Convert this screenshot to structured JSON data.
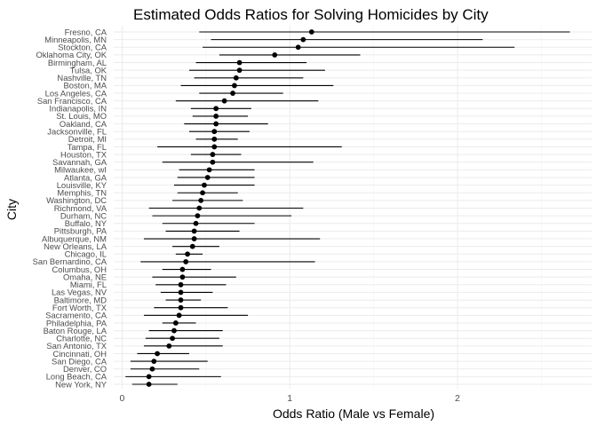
{
  "chart_data": {
    "type": "scatter",
    "title": "Estimated Odds Ratios for Solving Homicides by City",
    "xlabel": "Odds Ratio (Male vs Female)",
    "ylabel": "City",
    "xlim": [
      -0.05,
      2.8
    ],
    "xticks": [
      0,
      1,
      2
    ],
    "grid": true,
    "cities": [
      {
        "city": "Fresno, CA",
        "or": 1.13,
        "lo": 0.46,
        "hi": 2.67
      },
      {
        "city": "Minneapolis, MN",
        "or": 1.08,
        "lo": 0.53,
        "hi": 2.15
      },
      {
        "city": "Stockton, CA",
        "or": 1.05,
        "lo": 0.48,
        "hi": 2.34
      },
      {
        "city": "Oklahoma City, OK",
        "or": 0.91,
        "lo": 0.58,
        "hi": 1.42
      },
      {
        "city": "Birmingham, AL",
        "or": 0.7,
        "lo": 0.44,
        "hi": 1.1
      },
      {
        "city": "Tulsa, OK",
        "or": 0.7,
        "lo": 0.4,
        "hi": 1.21
      },
      {
        "city": "Nashville, TN",
        "or": 0.68,
        "lo": 0.43,
        "hi": 1.08
      },
      {
        "city": "Boston, MA",
        "or": 0.67,
        "lo": 0.35,
        "hi": 1.26
      },
      {
        "city": "Los Angeles, CA",
        "or": 0.66,
        "lo": 0.46,
        "hi": 0.96
      },
      {
        "city": "San Francisco, CA",
        "or": 0.61,
        "lo": 0.32,
        "hi": 1.17
      },
      {
        "city": "Indianapolis, IN",
        "or": 0.56,
        "lo": 0.41,
        "hi": 0.77
      },
      {
        "city": "St. Louis, MO",
        "or": 0.56,
        "lo": 0.42,
        "hi": 0.75
      },
      {
        "city": "Oakland, CA",
        "or": 0.56,
        "lo": 0.37,
        "hi": 0.87
      },
      {
        "city": "Jacksonville, FL",
        "or": 0.55,
        "lo": 0.4,
        "hi": 0.76
      },
      {
        "city": "Detroit, MI",
        "or": 0.55,
        "lo": 0.44,
        "hi": 0.69
      },
      {
        "city": "Tampa, FL",
        "or": 0.55,
        "lo": 0.21,
        "hi": 1.31
      },
      {
        "city": "Houston, TX",
        "or": 0.54,
        "lo": 0.41,
        "hi": 0.71
      },
      {
        "city": "Savannah, GA",
        "or": 0.54,
        "lo": 0.24,
        "hi": 1.14
      },
      {
        "city": "Milwaukee, wI",
        "or": 0.52,
        "lo": 0.34,
        "hi": 0.79
      },
      {
        "city": "Atlanta, GA",
        "or": 0.51,
        "lo": 0.33,
        "hi": 0.79
      },
      {
        "city": "Louisville, KY",
        "or": 0.49,
        "lo": 0.31,
        "hi": 0.79
      },
      {
        "city": "Memphis, TN",
        "or": 0.48,
        "lo": 0.33,
        "hi": 0.69
      },
      {
        "city": "Washington, DC",
        "or": 0.47,
        "lo": 0.3,
        "hi": 0.72
      },
      {
        "city": "Richmond, VA",
        "or": 0.46,
        "lo": 0.16,
        "hi": 1.08
      },
      {
        "city": "Durham, NC",
        "or": 0.45,
        "lo": 0.18,
        "hi": 1.01
      },
      {
        "city": "Buffalo, NY",
        "or": 0.44,
        "lo": 0.24,
        "hi": 0.79
      },
      {
        "city": "Pittsburgh, PA",
        "or": 0.43,
        "lo": 0.26,
        "hi": 0.7
      },
      {
        "city": "Albuquerque, NM",
        "or": 0.43,
        "lo": 0.13,
        "hi": 1.18
      },
      {
        "city": "New Orleans, LA",
        "or": 0.42,
        "lo": 0.3,
        "hi": 0.58
      },
      {
        "city": "Chicago, IL",
        "or": 0.39,
        "lo": 0.32,
        "hi": 0.48
      },
      {
        "city": "San Bernardino, CA",
        "or": 0.38,
        "lo": 0.11,
        "hi": 1.15
      },
      {
        "city": "Columbus, OH",
        "or": 0.36,
        "lo": 0.24,
        "hi": 0.53
      },
      {
        "city": "Omaha, NE",
        "or": 0.36,
        "lo": 0.18,
        "hi": 0.68
      },
      {
        "city": "Miami, FL",
        "or": 0.35,
        "lo": 0.2,
        "hi": 0.62
      },
      {
        "city": "Las Vegas, NV",
        "or": 0.35,
        "lo": 0.23,
        "hi": 0.54
      },
      {
        "city": "Baltimore, MD",
        "or": 0.35,
        "lo": 0.26,
        "hi": 0.47
      },
      {
        "city": "Fort Worth, TX",
        "or": 0.35,
        "lo": 0.19,
        "hi": 0.63
      },
      {
        "city": "Sacramento, CA",
        "or": 0.34,
        "lo": 0.13,
        "hi": 0.75
      },
      {
        "city": "Philadelphia, PA",
        "or": 0.32,
        "lo": 0.24,
        "hi": 0.44
      },
      {
        "city": "Baton Rouge, LA",
        "or": 0.31,
        "lo": 0.16,
        "hi": 0.6
      },
      {
        "city": "Charlotte, NC",
        "or": 0.3,
        "lo": 0.14,
        "hi": 0.58
      },
      {
        "city": "San Antonio, TX",
        "or": 0.28,
        "lo": 0.13,
        "hi": 0.6
      },
      {
        "city": "Cincinnati, OH",
        "or": 0.21,
        "lo": 0.09,
        "hi": 0.4
      },
      {
        "city": "San Diego, CA",
        "or": 0.19,
        "lo": 0.05,
        "hi": 0.51
      },
      {
        "city": "Denver, CO",
        "or": 0.18,
        "lo": 0.05,
        "hi": 0.46
      },
      {
        "city": "Long Beach, CA",
        "or": 0.16,
        "lo": 0.02,
        "hi": 0.59
      },
      {
        "city": "New York, NY",
        "or": 0.16,
        "lo": 0.06,
        "hi": 0.33
      }
    ]
  }
}
